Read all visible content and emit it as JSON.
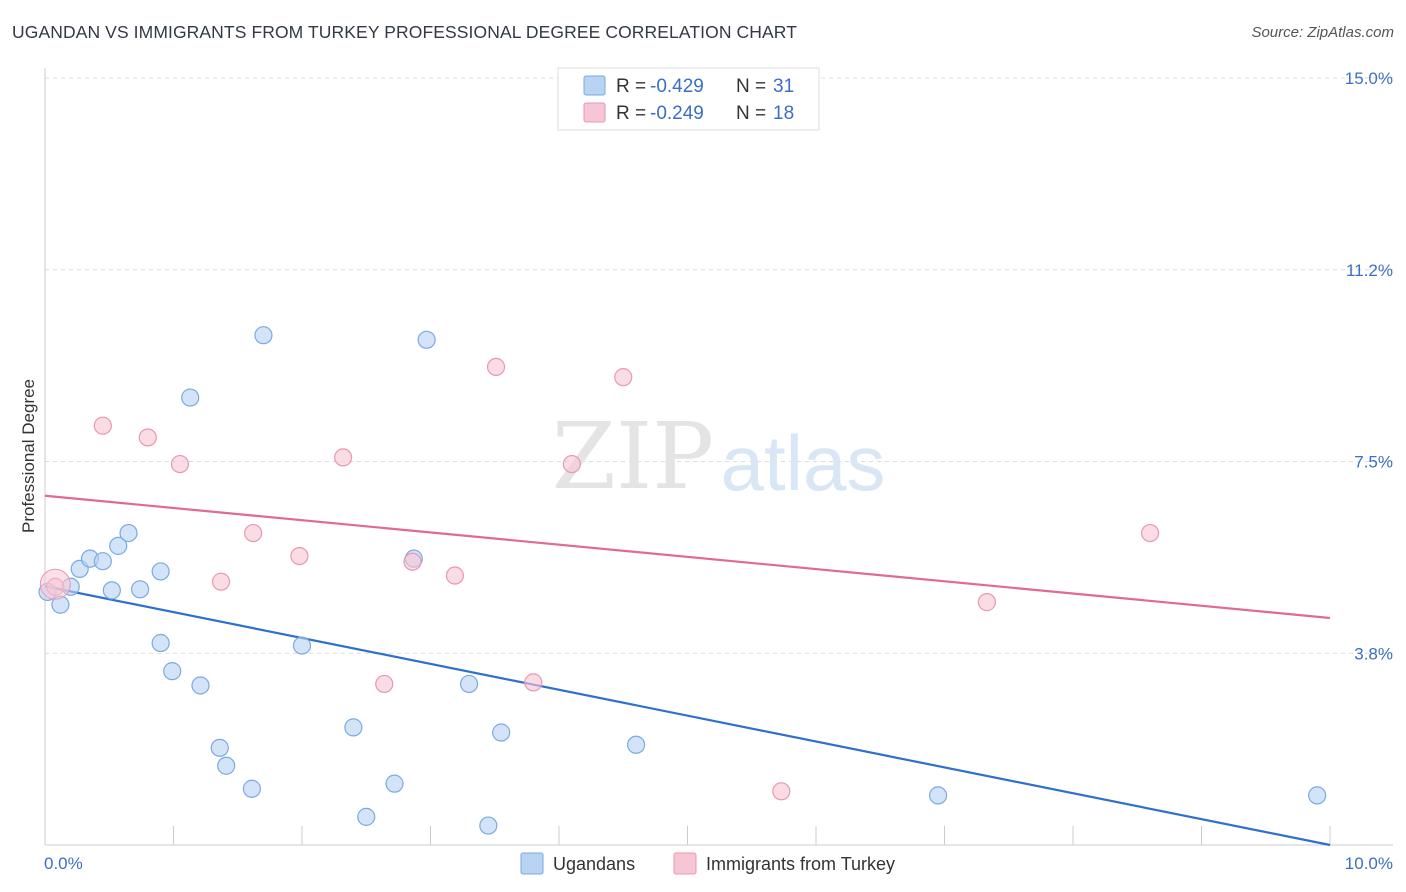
{
  "header": {
    "title": "UGANDAN VS IMMIGRANTS FROM TURKEY PROFESSIONAL DEGREE CORRELATION CHART",
    "source": "Source: ZipAtlas.com"
  },
  "watermark": {
    "zip": "ZIP",
    "atlas": "atlas"
  },
  "colors": {
    "ugandans_fill": "#b9d3f3",
    "ugandans_stroke": "#7aaae0",
    "ugandans_line": "#2f6fcf",
    "turkey_fill": "#f7c6d4",
    "turkey_stroke": "#ea97b1",
    "turkey_line": "#e06a92",
    "value_text": "#3b6fc4"
  },
  "legend": {
    "rows": [
      {
        "series": "Ugandans",
        "r_label": "R = ",
        "r_value": "-0.429",
        "n_label": "N = ",
        "n_value": "31"
      },
      {
        "series": "Immigrants from Turkey",
        "r_label": "R = ",
        "r_value": "-0.249",
        "n_label": "N = ",
        "n_value": "18"
      }
    ]
  },
  "chart_data": {
    "type": "scatter",
    "xlabel": "",
    "ylabel": "Professional Degree",
    "xlim": [
      0,
      10
    ],
    "ylim": [
      0,
      15
    ],
    "x_tick_labels": {
      "min": "0.0%",
      "max": "10.0%"
    },
    "y_ticks": [
      {
        "value": 3.75,
        "label": "3.8%"
      },
      {
        "value": 7.5,
        "label": "7.5%"
      },
      {
        "value": 11.25,
        "label": "11.2%"
      },
      {
        "value": 15.0,
        "label": "15.0%"
      }
    ],
    "grid": true,
    "legend_position": "top-center",
    "series": [
      {
        "name": "Ugandans",
        "points": [
          [
            0.02,
            4.95
          ],
          [
            0.12,
            4.7
          ],
          [
            0.2,
            5.05
          ],
          [
            0.27,
            5.4
          ],
          [
            0.35,
            5.6
          ],
          [
            0.45,
            5.55
          ],
          [
            0.52,
            4.98
          ],
          [
            0.57,
            5.85
          ],
          [
            0.65,
            6.1
          ],
          [
            0.74,
            5.0
          ],
          [
            0.9,
            3.95
          ],
          [
            0.9,
            5.35
          ],
          [
            0.99,
            3.4
          ],
          [
            1.13,
            8.75
          ],
          [
            1.21,
            3.12
          ],
          [
            1.36,
            1.9
          ],
          [
            1.41,
            1.55
          ],
          [
            1.61,
            1.1
          ],
          [
            1.7,
            9.97
          ],
          [
            2.0,
            3.9
          ],
          [
            2.4,
            2.3
          ],
          [
            2.5,
            0.55
          ],
          [
            2.72,
            1.2
          ],
          [
            2.87,
            5.6
          ],
          [
            2.97,
            9.88
          ],
          [
            3.3,
            3.15
          ],
          [
            3.45,
            0.38
          ],
          [
            3.55,
            2.2
          ],
          [
            4.6,
            1.96
          ],
          [
            6.95,
            0.97
          ],
          [
            9.9,
            0.97
          ]
        ],
        "trend": [
          [
            0.0,
            5.06
          ],
          [
            10.0,
            0.0
          ]
        ]
      },
      {
        "name": "Immigrants from Turkey",
        "points": [
          [
            0.08,
            5.05
          ],
          [
            0.45,
            8.2
          ],
          [
            0.8,
            7.97
          ],
          [
            1.05,
            7.45
          ],
          [
            1.37,
            5.15
          ],
          [
            1.62,
            6.1
          ],
          [
            1.98,
            5.65
          ],
          [
            2.32,
            7.58
          ],
          [
            2.64,
            3.15
          ],
          [
            2.86,
            5.54
          ],
          [
            3.19,
            5.27
          ],
          [
            3.51,
            9.35
          ],
          [
            3.8,
            3.18
          ],
          [
            4.1,
            7.45
          ],
          [
            4.5,
            9.15
          ],
          [
            5.73,
            1.05
          ],
          [
            7.33,
            4.75
          ],
          [
            8.6,
            6.1
          ]
        ],
        "trend": [
          [
            0.0,
            6.83
          ],
          [
            10.0,
            4.44
          ]
        ]
      }
    ]
  }
}
